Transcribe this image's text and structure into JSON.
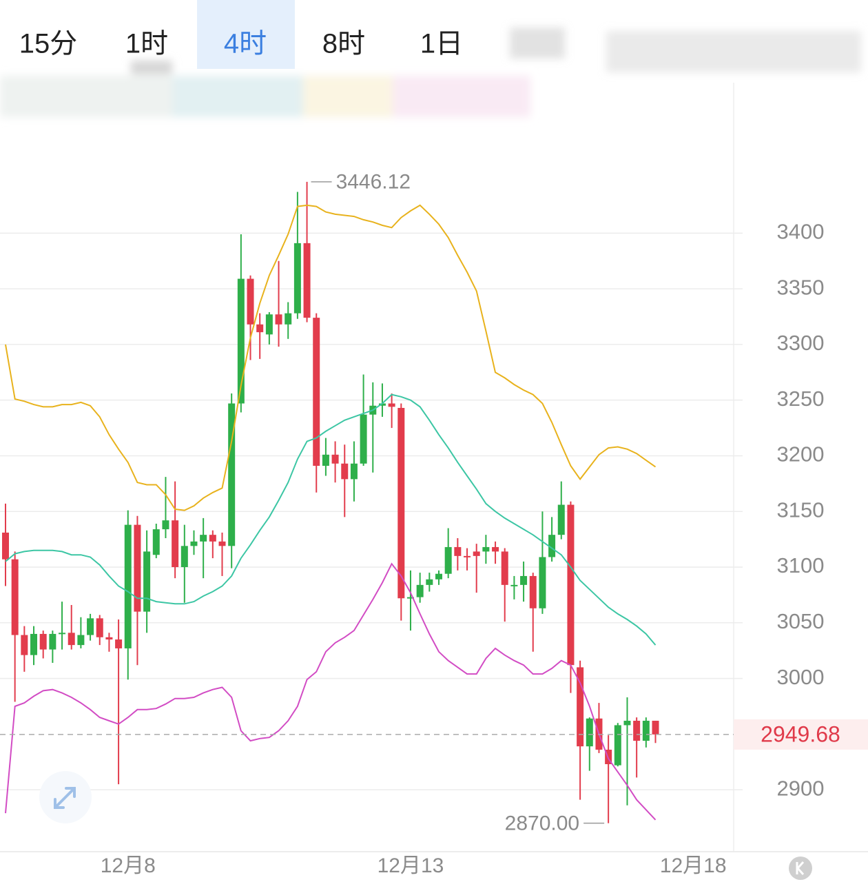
{
  "tabs": [
    "15分",
    "1时",
    "4时",
    "8时",
    "1日"
  ],
  "selected_tab": 2,
  "chart_data": {
    "type": "candlestick",
    "up_color": "#2eaf4a",
    "down_color": "#e23c4c",
    "ylim": [
      2845,
      3498
    ],
    "yticks": [
      2900,
      2950,
      3000,
      3050,
      3100,
      3150,
      3200,
      3250,
      3300,
      3350,
      3400
    ],
    "ytick_labels_shown": [
      2900,
      3000,
      3050,
      3100,
      3150,
      3200,
      3250,
      3300,
      3350,
      3400
    ],
    "xlim": [
      -0.585,
      77.3
    ],
    "xticks": [
      {
        "value": 13,
        "label": "12月8"
      },
      {
        "value": 43,
        "label": "12月13"
      },
      {
        "value": 73,
        "label": "12月18"
      }
    ],
    "grid": true,
    "ohlc": [
      [
        3131,
        3157,
        3083,
        3107
      ],
      [
        3107,
        3114,
        2979,
        3039
      ],
      [
        3039,
        3047,
        3006,
        3021
      ],
      [
        3021,
        3047,
        3012,
        3040
      ],
      [
        3040,
        3043,
        3018,
        3026
      ],
      [
        3026,
        3043,
        3014,
        3040
      ],
      [
        3040,
        3069,
        3026,
        3041
      ],
      [
        3041,
        3066,
        3026,
        3030
      ],
      [
        3030,
        3055,
        3027,
        3039
      ],
      [
        3039,
        3058,
        3034,
        3054
      ],
      [
        3054,
        3057,
        3030,
        3037
      ],
      [
        3037,
        3041,
        3024,
        3035
      ],
      [
        3035,
        3053,
        2905,
        3027
      ],
      [
        3027,
        3151,
        2999,
        3138
      ],
      [
        3138,
        3146,
        3012,
        3060
      ],
      [
        3060,
        3133,
        3041,
        3114
      ],
      [
        3111,
        3139,
        3108,
        3134
      ],
      [
        3134,
        3181,
        3126,
        3142
      ],
      [
        3142,
        3177,
        3090,
        3100
      ],
      [
        3100,
        3138,
        3068,
        3119
      ],
      [
        3119,
        3133,
        3111,
        3123
      ],
      [
        3123,
        3144,
        3090,
        3129
      ],
      [
        3129,
        3133,
        3108,
        3123
      ],
      [
        3123,
        3131,
        3092,
        3119
      ],
      [
        3119,
        3256,
        3099,
        3247
      ],
      [
        3247,
        3399,
        3239,
        3359
      ],
      [
        3359,
        3362,
        3286,
        3318
      ],
      [
        3318,
        3328,
        3287,
        3311
      ],
      [
        3309,
        3329,
        3300,
        3327
      ],
      [
        3327,
        3375,
        3298,
        3318
      ],
      [
        3318,
        3338,
        3305,
        3328
      ],
      [
        3328,
        3437,
        3323,
        3391
      ],
      [
        3391,
        3446.12,
        3320,
        3324
      ],
      [
        3324,
        3328,
        3167,
        3191
      ],
      [
        3191,
        3216,
        3182,
        3201
      ],
      [
        3201,
        3213,
        3176,
        3193
      ],
      [
        3193,
        3210,
        3145,
        3179
      ],
      [
        3179,
        3213,
        3159,
        3193
      ],
      [
        3193,
        3273,
        3191,
        3237
      ],
      [
        3237,
        3266,
        3185,
        3245
      ],
      [
        3245,
        3265,
        3235,
        3247
      ],
      [
        3247,
        3256,
        3225,
        3244
      ],
      [
        3243,
        3247,
        3052,
        3072
      ],
      [
        3072,
        3097,
        3043,
        3073
      ],
      [
        3073,
        3095,
        3068,
        3084
      ],
      [
        3084,
        3095,
        3078,
        3089
      ],
      [
        3089,
        3097,
        3084,
        3094
      ],
      [
        3094,
        3135,
        3090,
        3118
      ],
      [
        3118,
        3126,
        3097,
        3110
      ],
      [
        3110,
        3117,
        3097,
        3109
      ],
      [
        3114,
        3121,
        3077,
        3110
      ],
      [
        3114,
        3129,
        3103,
        3118
      ],
      [
        3118,
        3123,
        3103,
        3114
      ],
      [
        3114,
        3117,
        3051,
        3084
      ],
      [
        3084,
        3092,
        3071,
        3084
      ],
      [
        3084,
        3105,
        3069,
        3092
      ],
      [
        3092,
        3095,
        3024,
        3063
      ],
      [
        3063,
        3150,
        3058,
        3109
      ],
      [
        3109,
        3145,
        3105,
        3129
      ],
      [
        3129,
        3177,
        3125,
        3156
      ],
      [
        3156,
        3159,
        2987,
        3012
      ],
      [
        3010,
        3016,
        2891,
        2939
      ],
      [
        2939,
        2965,
        2917,
        2964
      ],
      [
        2964,
        2978,
        2933,
        2936
      ],
      [
        2936,
        2949,
        2870,
        2923
      ],
      [
        2922,
        2960,
        2921,
        2958
      ],
      [
        2958,
        2983,
        2886,
        2962
      ],
      [
        2962,
        2965,
        2911,
        2944
      ],
      [
        2944,
        2965,
        2938,
        2962
      ],
      [
        2962,
        2962,
        2942,
        2949.68
      ]
    ],
    "lines": [
      {
        "color": "#e8b21c",
        "values": [
          3300,
          3251,
          3249,
          3246,
          3244,
          3244,
          3246,
          3246,
          3248,
          3245,
          3235,
          3219,
          3206,
          3194,
          3176,
          3174,
          3174,
          3165,
          3152,
          3151,
          3155,
          3162,
          3167,
          3171,
          3213,
          3263,
          3306,
          3337,
          3362,
          3380,
          3399,
          3424,
          3425,
          3424,
          3419,
          3417,
          3416,
          3415,
          3412,
          3410,
          3407,
          3405,
          3414,
          3420,
          3425,
          3417,
          3408,
          3396,
          3380,
          3365,
          3348,
          3312,
          3275,
          3270,
          3264,
          3259,
          3255,
          3247,
          3230,
          3210,
          3191,
          3179,
          3190,
          3201,
          3207,
          3208,
          3206,
          3202,
          3196,
          3190
        ]
      },
      {
        "color": "#3cc6a4",
        "values": [
          3105,
          3112,
          3114,
          3115,
          3115,
          3115,
          3114,
          3111,
          3111,
          3109,
          3102,
          3092,
          3083,
          3078,
          3072,
          3072,
          3069,
          3068,
          3067,
          3067,
          3069,
          3074,
          3078,
          3083,
          3092,
          3108,
          3120,
          3133,
          3145,
          3160,
          3176,
          3197,
          3213,
          3216,
          3222,
          3227,
          3232,
          3235,
          3238,
          3241,
          3247,
          3255,
          3253,
          3250,
          3244,
          3232,
          3219,
          3207,
          3194,
          3182,
          3170,
          3157,
          3150,
          3144,
          3139,
          3134,
          3129,
          3123,
          3117,
          3111,
          3100,
          3088,
          3080,
          3072,
          3064,
          3058,
          3053,
          3047,
          3040,
          3030
        ]
      },
      {
        "color": "#d24cc4",
        "values": [
          2879,
          2975,
          2978,
          2984,
          2989,
          2990,
          2987,
          2983,
          2978,
          2972,
          2965,
          2962,
          2959,
          2965,
          2972,
          2972,
          2973,
          2977,
          2982,
          2982,
          2983,
          2987,
          2990,
          2992,
          2983,
          2953,
          2944,
          2946,
          2947,
          2953,
          2962,
          2975,
          2999,
          3006,
          3024,
          3032,
          3037,
          3043,
          3057,
          3071,
          3086,
          3103,
          3092,
          3077,
          3058,
          3040,
          3024,
          3016,
          3010,
          3004,
          3004,
          3018,
          3027,
          3021,
          3016,
          3012,
          3004,
          3004,
          3009,
          3016,
          3012,
          2996,
          2975,
          2950,
          2928,
          2916,
          2904,
          2891,
          2882,
          2873
        ]
      }
    ],
    "annotations": [
      {
        "value": 3446.12,
        "label": "3446.12",
        "candle": 32
      },
      {
        "value": 2870,
        "label": "2870.00",
        "candle": 64
      }
    ],
    "last_price": {
      "value": 2949.68,
      "label": "2949.68"
    }
  }
}
